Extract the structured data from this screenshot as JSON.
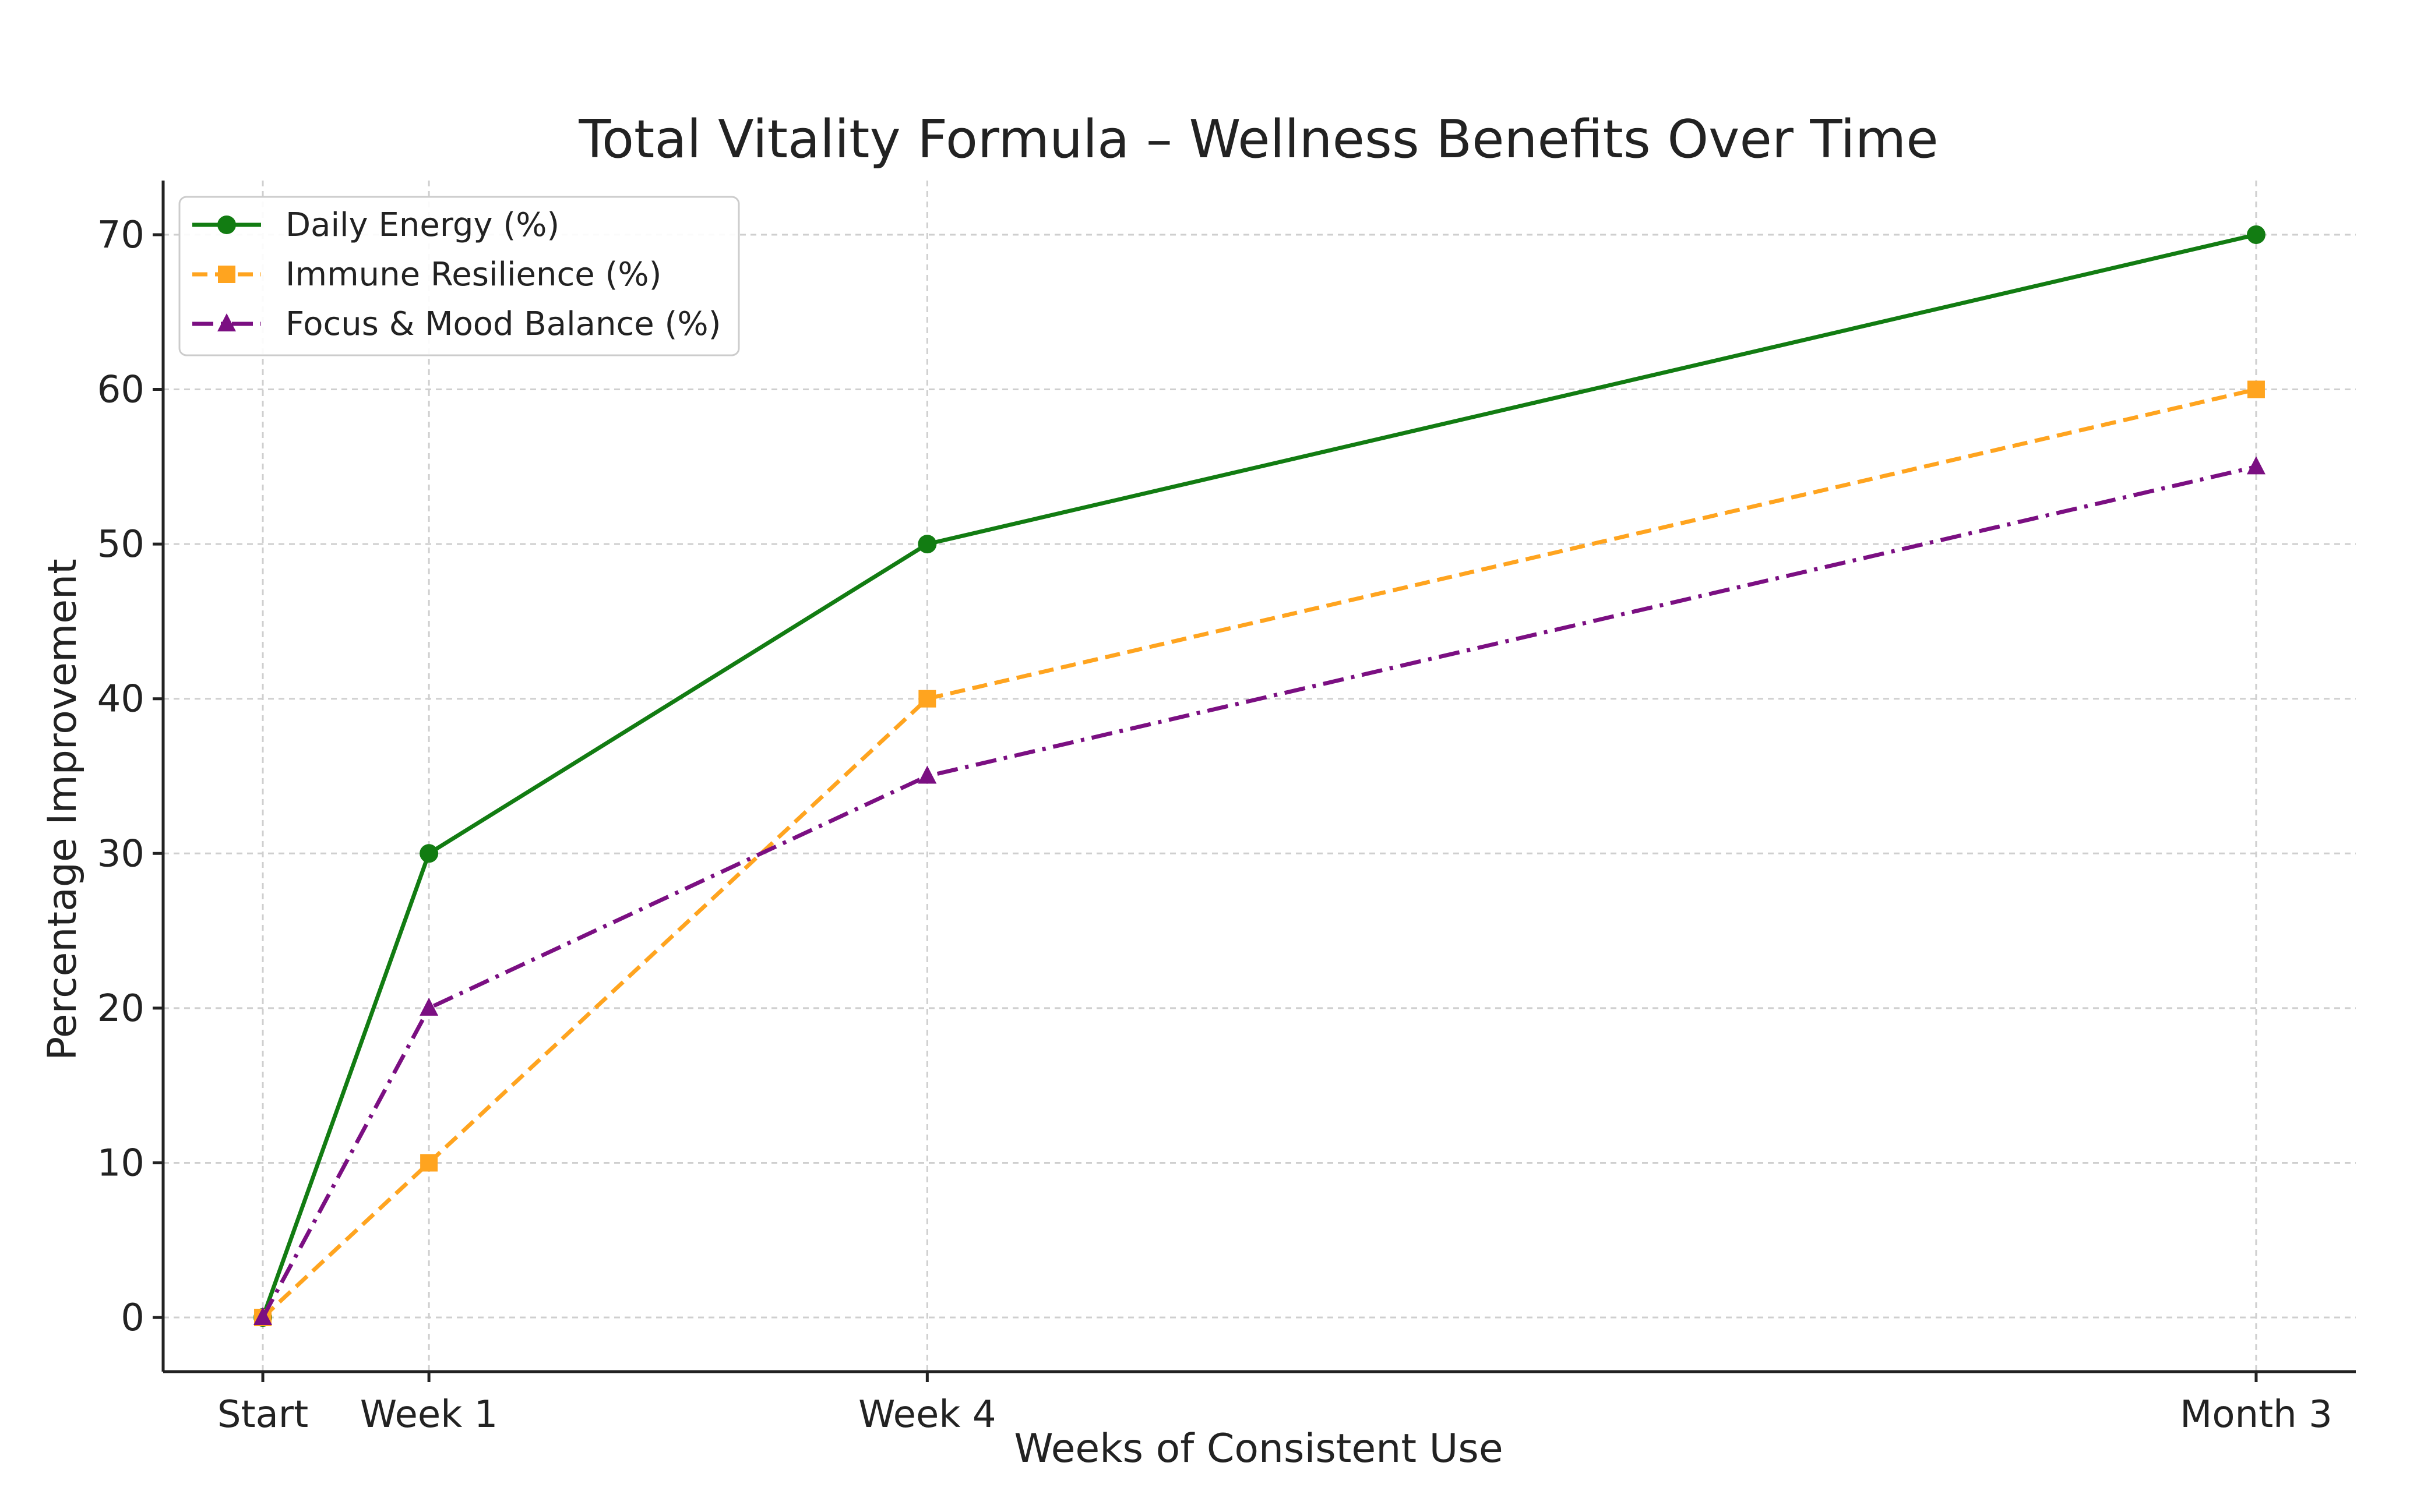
{
  "chart_data": {
    "type": "line",
    "title": "Total Vitality Formula – Wellness Benefits Over Time",
    "xlabel": "Weeks of Consistent Use",
    "ylabel": "Percentage Improvement",
    "categories": [
      "Start",
      "Week 1",
      "Week 4",
      "Month 3"
    ],
    "x": [
      0,
      1,
      4,
      12
    ],
    "xlim": [
      -0.6,
      12.6
    ],
    "ylim": [
      -3.5,
      73.5
    ],
    "yticks": [
      0,
      10,
      20,
      30,
      40,
      50,
      60,
      70
    ],
    "grid": true,
    "legend_position": "top-left",
    "series": [
      {
        "name": "Daily Energy (%)",
        "values": [
          0,
          30,
          50,
          70
        ],
        "color": "#127c12",
        "line_style": "solid",
        "marker": "circle"
      },
      {
        "name": "Immune Resilience (%)",
        "values": [
          0,
          10,
          40,
          60
        ],
        "color": "#ffa41f",
        "line_style": "dashed",
        "marker": "square"
      },
      {
        "name": "Focus & Mood Balance (%)",
        "values": [
          0,
          20,
          35,
          55
        ],
        "color": "#7b0f82",
        "line_style": "dashdot",
        "marker": "triangle"
      }
    ]
  }
}
